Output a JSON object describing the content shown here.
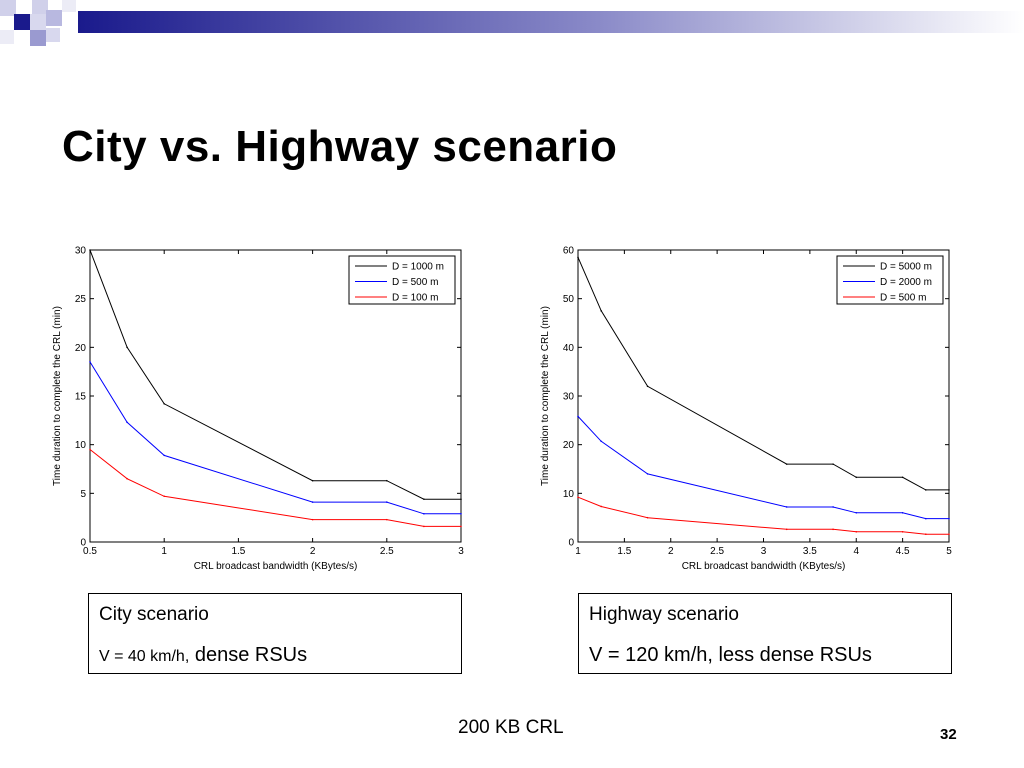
{
  "slide": {
    "title": "City vs. Highway scenario",
    "footer": "200 KB CRL",
    "page_number": "32"
  },
  "captions": {
    "city": {
      "title": "City scenario",
      "speed": "V = 40 km/h,",
      "detail": " dense RSUs"
    },
    "highway": {
      "title": "Highway scenario",
      "speed": "V = 120 km/h,",
      "detail": " less dense RSUs"
    }
  },
  "colors": {
    "deco_blue": "#1a1a8c",
    "deco_light": "#9a9ad0"
  },
  "chart_data": [
    {
      "type": "line",
      "xlabel": "CRL broadcast bandwidth (KBytes/s)",
      "ylabel": "Time duration to complete the CRL (min)",
      "xlim": [
        0.5,
        3
      ],
      "ylim": [
        0,
        30
      ],
      "xticks": [
        "0.5",
        "1",
        "1.5",
        "2",
        "2.5",
        "3"
      ],
      "yticks": [
        "0",
        "5",
        "10",
        "15",
        "20",
        "25",
        "30"
      ],
      "grid": false,
      "legend_position": "top-right",
      "series": [
        {
          "name": "D = 1000 m",
          "color": "#000000",
          "x": [
            0.5,
            0.75,
            1,
            2,
            2.5,
            2.75,
            3
          ],
          "y": [
            30,
            20,
            14.2,
            6.3,
            6.3,
            4.4,
            4.4
          ]
        },
        {
          "name": "D = 500 m",
          "color": "#0000ff",
          "x": [
            0.5,
            0.75,
            1,
            2,
            2.5,
            2.75,
            3
          ],
          "y": [
            18.5,
            12.3,
            8.9,
            4.1,
            4.1,
            2.9,
            2.9
          ]
        },
        {
          "name": "D = 100 m",
          "color": "#ff0000",
          "x": [
            0.5,
            0.75,
            1,
            2,
            2.5,
            2.75,
            3
          ],
          "y": [
            9.5,
            6.5,
            4.7,
            2.3,
            2.3,
            1.6,
            1.6
          ]
        }
      ]
    },
    {
      "type": "line",
      "xlabel": "CRL broadcast bandwidth (KBytes/s)",
      "ylabel": "Time duration to complete the CRL (min)",
      "xlim": [
        1,
        5
      ],
      "ylim": [
        0,
        60
      ],
      "xticks": [
        "1",
        "1.5",
        "2",
        "2.5",
        "3",
        "3.5",
        "4",
        "4.5",
        "5"
      ],
      "yticks": [
        "0",
        "10",
        "20",
        "30",
        "40",
        "50",
        "60"
      ],
      "grid": false,
      "legend_position": "top-right",
      "series": [
        {
          "name": "D = 5000 m",
          "color": "#000000",
          "x": [
            1,
            1.25,
            1.75,
            3.25,
            3.75,
            4,
            4.5,
            4.75,
            5
          ],
          "y": [
            58.5,
            47.5,
            32,
            16,
            16,
            13.3,
            13.3,
            10.7,
            10.7
          ]
        },
        {
          "name": "D = 2000 m",
          "color": "#0000ff",
          "x": [
            1,
            1.25,
            1.75,
            3.25,
            3.75,
            4,
            4.5,
            4.75,
            5
          ],
          "y": [
            25.8,
            20.7,
            14,
            7.2,
            7.2,
            6,
            6,
            4.8,
            4.8
          ]
        },
        {
          "name": "D = 500 m",
          "color": "#ff0000",
          "x": [
            1,
            1.25,
            1.75,
            3.25,
            3.75,
            4,
            4.5,
            4.75,
            5
          ],
          "y": [
            9.2,
            7.3,
            5,
            2.6,
            2.6,
            2.1,
            2.1,
            1.6,
            1.6
          ]
        }
      ]
    }
  ]
}
